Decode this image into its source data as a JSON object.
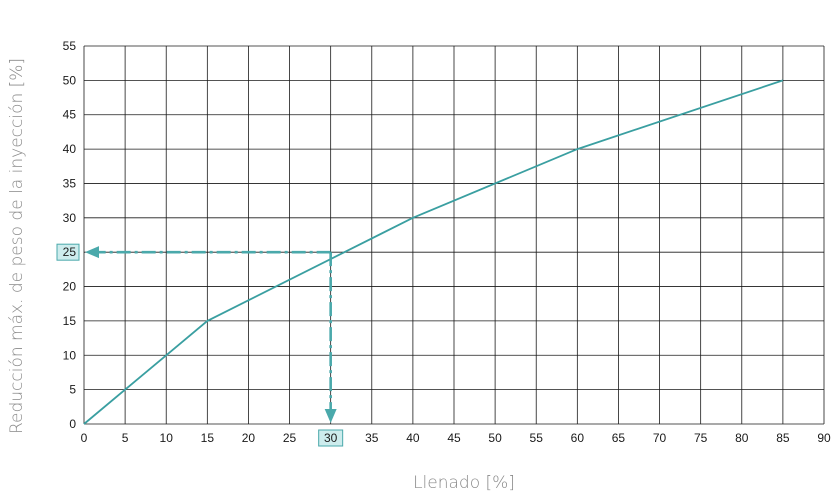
{
  "chart_data": {
    "type": "line",
    "xlabel": "Llenado [%]",
    "ylabel": "Reducción máx. de peso de la inyección [%]",
    "xlim": [
      0,
      90
    ],
    "ylim": [
      0,
      55
    ],
    "x_ticks": [
      0,
      5,
      10,
      15,
      20,
      25,
      30,
      35,
      40,
      45,
      50,
      55,
      60,
      65,
      70,
      75,
      80,
      85,
      90
    ],
    "y_ticks": [
      0,
      5,
      10,
      15,
      20,
      25,
      30,
      35,
      40,
      45,
      50,
      55
    ],
    "grid": true,
    "series": [
      {
        "x": [
          0,
          10,
          15,
          40,
          60,
          85
        ],
        "y": [
          0,
          10,
          15,
          30,
          40,
          50
        ],
        "color": "#3a9fa1"
      }
    ],
    "annotation": {
      "x": 30,
      "y": 25,
      "style": "dashed-arrows",
      "color": "#4aa9ab",
      "highlight_fill": "#cdeced",
      "highlighted_x_tick": "30",
      "highlighted_y_tick": "25"
    }
  }
}
